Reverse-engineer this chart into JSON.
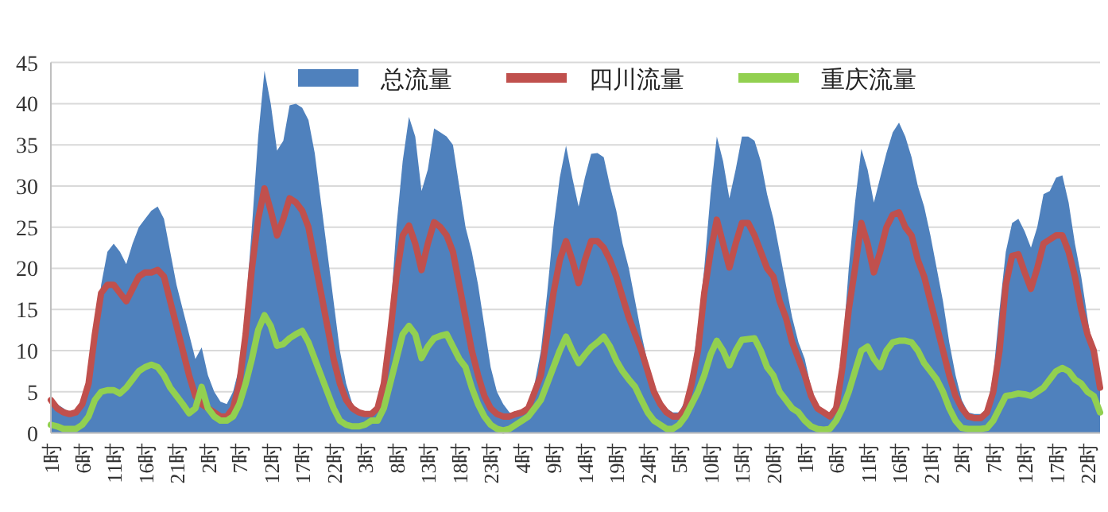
{
  "chart_data": {
    "type": "area",
    "categories": [
      "1时",
      null,
      null,
      null,
      null,
      "6时",
      null,
      null,
      null,
      null,
      "11时",
      null,
      null,
      null,
      null,
      "16时",
      null,
      null,
      null,
      null,
      "21时",
      null,
      null,
      null,
      null,
      "2时",
      null,
      null,
      null,
      null,
      "7时",
      null,
      null,
      null,
      null,
      "12时",
      null,
      null,
      null,
      null,
      "17时",
      null,
      null,
      null,
      null,
      "22时",
      null,
      null,
      null,
      null,
      "3时",
      null,
      null,
      null,
      null,
      "8时",
      null,
      null,
      null,
      null,
      "13时",
      null,
      null,
      null,
      null,
      "18时",
      null,
      null,
      null,
      null,
      "23时",
      null,
      null,
      null,
      null,
      "4时",
      null,
      null,
      null,
      null,
      "9时",
      null,
      null,
      null,
      null,
      "14时",
      null,
      null,
      null,
      null,
      "19时",
      null,
      null,
      null,
      null,
      "24时",
      null,
      null,
      null,
      null,
      "5时",
      null,
      null,
      null,
      null,
      "10时",
      null,
      null,
      null,
      null,
      "15时",
      null,
      null,
      null,
      null,
      "20时",
      null,
      null,
      null,
      null,
      "1时",
      null,
      null,
      null,
      null,
      "6时",
      null,
      null,
      null,
      null,
      "11时",
      null,
      null,
      null,
      null,
      "16时",
      null,
      null,
      null,
      null,
      "21时",
      null,
      null,
      null,
      null,
      "2时",
      null,
      null,
      null,
      null,
      "7时",
      null,
      null,
      null,
      null,
      "12时",
      null,
      null,
      null,
      null,
      "17时",
      null,
      null,
      null,
      null,
      "22时",
      null,
      null
    ],
    "series": [
      {
        "name": "总流量",
        "color": "#4f81bd",
        "values": [
          4.5,
          3.5,
          3,
          2.5,
          2.5,
          3,
          5,
          11,
          18,
          22,
          23,
          22,
          20.5,
          23,
          25,
          26,
          27,
          27.5,
          26,
          22,
          18,
          15,
          12,
          9,
          10.4,
          7,
          5,
          3.8,
          3.5,
          5,
          8,
          15,
          25,
          36,
          44,
          40,
          34.3,
          35.5,
          39.8,
          40,
          39.5,
          38,
          34,
          28,
          22,
          16,
          10,
          6,
          3.5,
          2.5,
          2.3,
          2.5,
          3.5,
          7,
          14,
          25,
          33,
          38.4,
          36,
          29.4,
          32,
          37,
          36.5,
          36,
          35,
          30,
          25,
          22,
          18,
          13,
          8,
          5,
          3.5,
          2.5,
          2.3,
          2.5,
          3,
          6,
          10,
          17,
          25,
          31,
          34.9,
          31,
          27.5,
          31,
          33.9,
          34,
          33.5,
          30,
          27,
          23,
          20,
          16,
          12,
          8.5,
          6,
          4,
          3,
          2.5,
          2.5,
          4,
          7,
          13,
          20,
          29,
          36,
          33,
          28.5,
          32,
          36,
          36,
          35.5,
          33,
          29,
          26,
          22,
          18,
          14,
          11,
          9,
          5.5,
          3.5,
          2.5,
          2.2,
          4,
          10,
          20,
          28,
          34.5,
          32,
          28,
          31,
          34,
          36.5,
          37.7,
          36,
          33.5,
          30,
          27.5,
          24,
          20,
          16,
          11,
          7,
          4,
          2.5,
          2.3,
          2.3,
          3,
          7,
          15,
          22,
          25.5,
          26,
          24.5,
          22.5,
          25,
          29,
          29.4,
          31,
          31.3,
          28,
          23,
          19,
          14,
          9,
          5.2
        ]
      },
      {
        "name": "四川流量",
        "type": "line",
        "color": "#c0504d",
        "values": [
          4,
          3,
          2.5,
          2.3,
          2.5,
          3.5,
          6,
          12,
          17,
          18,
          18,
          17,
          16,
          17.5,
          19,
          19.5,
          19.5,
          19.8,
          19,
          16,
          13,
          10,
          7,
          4.5,
          3.5,
          3,
          2.5,
          2,
          2,
          3,
          6,
          12,
          20,
          26,
          29.7,
          27,
          24,
          26,
          28.5,
          28,
          27,
          25,
          21,
          17,
          13,
          9,
          6,
          4,
          3,
          2.5,
          2.3,
          2.3,
          3,
          6,
          12,
          19,
          24,
          25.2,
          23,
          19.8,
          23,
          25.6,
          25,
          24,
          22,
          18,
          14,
          10,
          7,
          4.5,
          3,
          2.3,
          2,
          2,
          2.3,
          2.5,
          3,
          5,
          7,
          12,
          17,
          21,
          23.3,
          21,
          18.2,
          21,
          23.3,
          23.3,
          22.5,
          21,
          19,
          16.5,
          14,
          12,
          10,
          7.5,
          5,
          3.5,
          2.5,
          2,
          2,
          3,
          6,
          10,
          17,
          22,
          25.9,
          23,
          20.1,
          23,
          25.5,
          25.5,
          24,
          22,
          20,
          19,
          16,
          14,
          11,
          9,
          7,
          4.5,
          3,
          2.5,
          2,
          3,
          8,
          15,
          20,
          25.5,
          23,
          19.5,
          22,
          25,
          26.5,
          26.8,
          25,
          24,
          21,
          19,
          16,
          13,
          10,
          7,
          4.5,
          3,
          2,
          1.8,
          1.8,
          2.5,
          5,
          10,
          18,
          21.5,
          21.7,
          19.5,
          17.5,
          20,
          23,
          23.5,
          24,
          24,
          22,
          19,
          15,
          12,
          10,
          5.5
        ]
      },
      {
        "name": "重庆流量",
        "type": "line",
        "color": "#92d050",
        "values": [
          1,
          0.8,
          0.5,
          0.5,
          0.5,
          1,
          2,
          4,
          5,
          5.2,
          5.2,
          4.8,
          5.5,
          6.5,
          7.5,
          8,
          8.3,
          8,
          7,
          5.5,
          4.5,
          3.5,
          2.4,
          3,
          5.6,
          3,
          2,
          1.5,
          1.5,
          2,
          3.5,
          6,
          9,
          12.5,
          14.3,
          13,
          10.6,
          10.8,
          11.5,
          12,
          12.4,
          11,
          9,
          7,
          5,
          3,
          1.5,
          1,
          0.8,
          0.8,
          1,
          1.5,
          1.5,
          3,
          6,
          9,
          12,
          13,
          12,
          9.1,
          10.5,
          11.5,
          11.8,
          12,
          10.5,
          9,
          8,
          5.5,
          3.5,
          2,
          1,
          0.5,
          0.3,
          0.5,
          1,
          1.5,
          2,
          3,
          4,
          6,
          8,
          10,
          11.7,
          10,
          8.5,
          9.5,
          10.4,
          11,
          11.7,
          10.5,
          8.8,
          7.5,
          6.5,
          5.6,
          4,
          2.5,
          1.5,
          1,
          0.5,
          0.5,
          1,
          2,
          3.5,
          5,
          7,
          9.5,
          11.2,
          10,
          8.2,
          10,
          11.3,
          11.4,
          11.5,
          10,
          8,
          7,
          5,
          4,
          3,
          2.5,
          1.5,
          0.8,
          0.5,
          0.4,
          0.5,
          1.5,
          3,
          5,
          7.5,
          10,
          10.5,
          9,
          8,
          10,
          11,
          11.2,
          11.2,
          11,
          10,
          8.5,
          7.5,
          6.5,
          5,
          3,
          1.5,
          0.6,
          0.5,
          0.5,
          0.5,
          0.6,
          1.5,
          3,
          4.5,
          4.6,
          4.8,
          4.7,
          4.5,
          5,
          5.5,
          6.5,
          7.5,
          7.9,
          7.5,
          6.5,
          6,
          5,
          4.5,
          2.5
        ]
      }
    ],
    "ylim": [
      0,
      45
    ],
    "yticks": [
      0,
      5,
      10,
      15,
      20,
      25,
      30,
      35,
      40,
      45
    ],
    "grid": "y",
    "legend": "top"
  }
}
